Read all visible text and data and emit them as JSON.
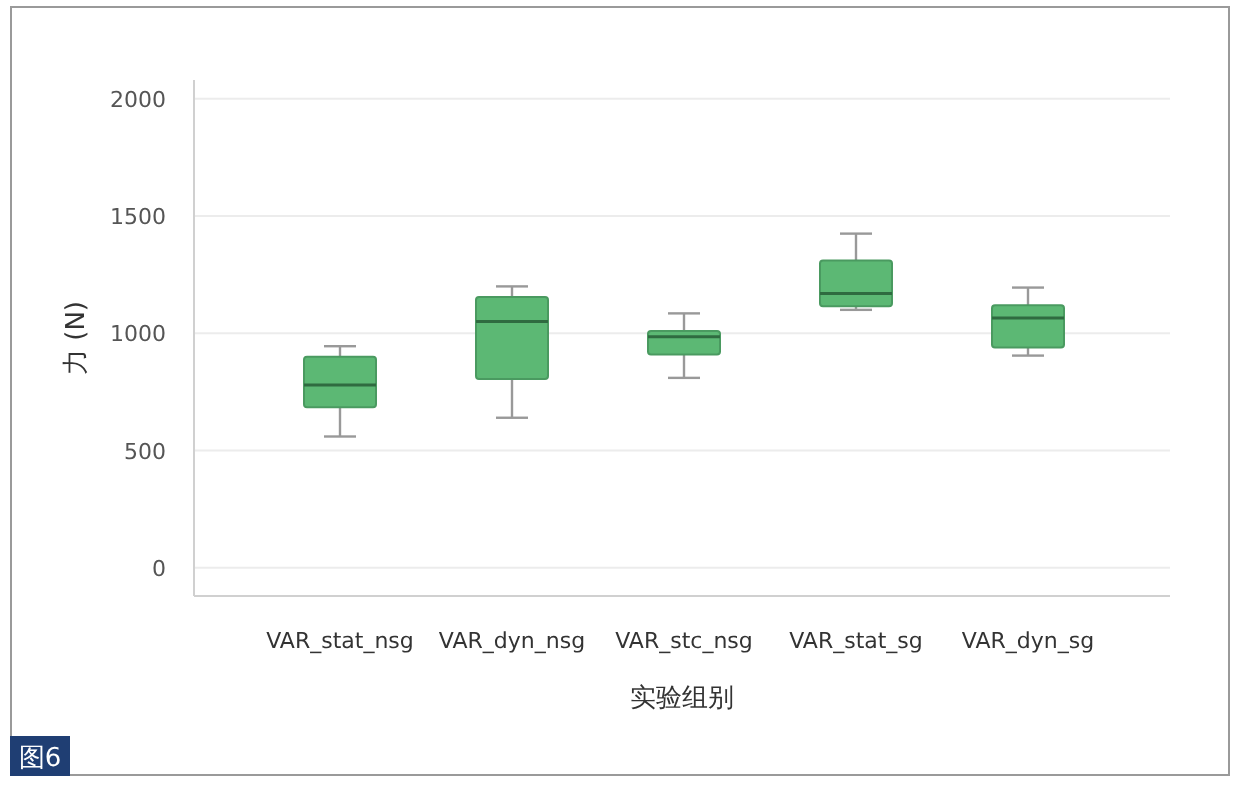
{
  "chart_data": {
    "type": "box",
    "xlabel": "实验组别",
    "ylabel": "力 (N)",
    "categories": [
      "VAR_stat_nsg",
      "VAR_dyn_nsg",
      "VAR_stc_nsg",
      "VAR_stat_sg",
      "VAR_dyn_sg"
    ],
    "series": [
      {
        "color": "#5cb874",
        "boxes": [
          {
            "low": 560,
            "q1": 685,
            "median": 780,
            "q3": 900,
            "high": 945
          },
          {
            "low": 640,
            "q1": 805,
            "median": 1050,
            "q3": 1155,
            "high": 1200
          },
          {
            "low": 810,
            "q1": 910,
            "median": 985,
            "q3": 1010,
            "high": 1085
          },
          {
            "low": 1100,
            "q1": 1115,
            "median": 1170,
            "q3": 1310,
            "high": 1425
          },
          {
            "low": 905,
            "q1": 940,
            "median": 1065,
            "q3": 1120,
            "high": 1195
          }
        ]
      }
    ],
    "ylim": [
      -120,
      2080
    ],
    "yticks": [
      0,
      500,
      1000,
      1500,
      2000
    ],
    "grid": "y",
    "annotations": [
      "图6"
    ]
  }
}
